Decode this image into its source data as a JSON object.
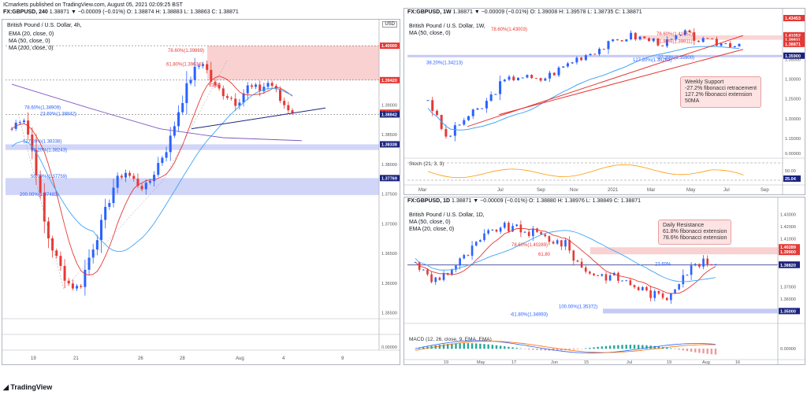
{
  "header": {
    "line1": "ICmarkets published on TradingView.com, August 05, 2021 02:09:25 BST",
    "line2_symbol": "FX:GBPUSD, 240",
    "line2_rest": "1.38871 ▼ −0.00009 (−0.01%) O: 1.38874 H: 1.38883 L: 1.38863 C: 1.38871"
  },
  "footer": {
    "brand": "TradingView"
  },
  "left_chart": {
    "title": "British Pound / U.S. Dollar, 4h,",
    "currency": "USD",
    "legend": [
      "EMA (20, close, 0)",
      "MA (50, close, 0)",
      "MA (200, close, 0)"
    ],
    "price_ticks": [
      "1.40000",
      "1.39420",
      "1.39000",
      "1.38871",
      "1.38842",
      "1.38500",
      "1.38338",
      "1.38000",
      "1.37769",
      "1.37500",
      "1.37000",
      "1.36500",
      "1.36000",
      "1.35500",
      "0.00000"
    ],
    "time_ticks": [
      "19",
      "21",
      "26",
      "28",
      "Aug",
      "4",
      "9"
    ],
    "annotations": [
      "78.60%(1.39869)",
      "61.80%(1.39634)",
      "61.80",
      "78.60%(1.38909)",
      "23.60%(1.38842)",
      "127.20%(1.38338)",
      "38.20%(1.38243)",
      "50.00%(1.37759)",
      "200.00%(1.37483)"
    ],
    "chart_data": {
      "type": "candlestick",
      "series": [
        {
          "name": "GBPUSD 4h",
          "close_last": 1.38871
        },
        {
          "name": "EMA (20, close, 0)"
        },
        {
          "name": "MA (50, close, 0)"
        },
        {
          "name": "MA (200, close, 0)"
        }
      ],
      "ylim": [
        1.354,
        1.402
      ],
      "levels": {
        "resistance_zone": [
          1.3942,
          1.4
        ],
        "support_zone_1": [
          1.38243,
          1.38338
        ],
        "support_zone_2": [
          1.37483,
          1.37769
        ],
        "current": 1.38871,
        "fib_23_6": 1.38842
      }
    }
  },
  "weekly_chart": {
    "title_symbol": "FX:GBPUSD, 1W",
    "title_rest": "1.38871 ▼ −0.00009 (−0.01%) O: 1.39008 H: 1.39578 L: 1.38735 C: 1.38871",
    "subtitle": "British Pound / U.S. Dollar, 1W,",
    "legend": [
      "MA (50, close, 0)"
    ],
    "price_ticks": [
      "1.41052",
      "1.39911",
      "1.38871",
      "1.35900",
      "1.35000",
      "1.30000",
      "1.25000",
      "1.20000",
      "1.15000",
      "0.00000"
    ],
    "top_tick": "1.43453",
    "time_ticks": [
      "Mar",
      "Jul",
      "Sep",
      "Nov",
      "2021",
      "Mar",
      "May",
      "Jul",
      "Sep"
    ],
    "annotations": [
      "78.60%(1.43003)",
      "78.60%(1.41052)",
      "61.80%(1.39911)",
      "38.20%(1.34213)",
      "127.20%(1.35263)",
      "-27.20%(1.35900)"
    ],
    "note_lines": [
      "Weekly Support",
      "-27.2% fibonacci retracement",
      "127.2% fibonacci extension",
      "50MA"
    ],
    "stoch_label": "Stoch (21, 3, 3)",
    "stoch_ticks": [
      "50.00",
      "25.04"
    ],
    "chart_data": {
      "type": "candlestick",
      "series": [
        {
          "name": "GBPUSD 1W",
          "close_last": 1.38871
        },
        {
          "name": "MA (50, close, 0)"
        }
      ],
      "ylim": [
        1.12,
        1.45
      ],
      "levels": {
        "weekly_support": 1.359,
        "resistance_1": 1.39911,
        "resistance_2": 1.41052
      }
    }
  },
  "daily_chart": {
    "title_symbol": "FX:GBPUSD, 1D",
    "title_rest": "1.38871 ▼ −0.00009 (−0.01%) O: 1.38880 H: 1.38976 L: 1.38849 C: 1.38871",
    "subtitle": "British Pound / U.S. Dollar, 1D,",
    "legend": [
      "MA (50, close, 0)",
      "EMA (20, close, 0)"
    ],
    "price_ticks": [
      "1.43000",
      "1.42000",
      "1.41000",
      "1.40289",
      "1.39900",
      "1.38871",
      "1.38820",
      "1.37000",
      "1.36000",
      "1.35000"
    ],
    "time_ticks": [
      "19",
      "May",
      "17",
      "Jun",
      "15",
      "Jul",
      "19",
      "Aug",
      "16"
    ],
    "annotations": [
      "78.60%(1.40289)",
      "61.80",
      "23.60%",
      "100.00%(1.35372)",
      "-61.80%(1.34993)"
    ],
    "note_lines": [
      "Daily Resistance",
      "61.8% fibonacci extension",
      "78.6% fibonacci extension"
    ],
    "macd_label": "MACD (12, 26, close, 9, EMA, EMA)",
    "macd_ticks": [
      "0.00000"
    ],
    "chart_data": {
      "type": "candlestick",
      "series": [
        {
          "name": "GBPUSD 1D",
          "close_last": 1.38871
        },
        {
          "name": "MA (50, close, 0)"
        },
        {
          "name": "EMA (20, close, 0)"
        }
      ],
      "ylim": [
        1.345,
        1.435
      ],
      "levels": {
        "daily_resistance": [
          1.399,
          1.40289
        ],
        "support": 1.3882,
        "lower": 1.35
      }
    }
  },
  "colors": {
    "up": "#2962ff",
    "down": "#e53935",
    "ema": "#e53935",
    "ma50": "#42a5f5",
    "ma200": "#7e57c2",
    "zone_red": "#f8c5c5",
    "zone_blue": "#c5cbf5"
  }
}
